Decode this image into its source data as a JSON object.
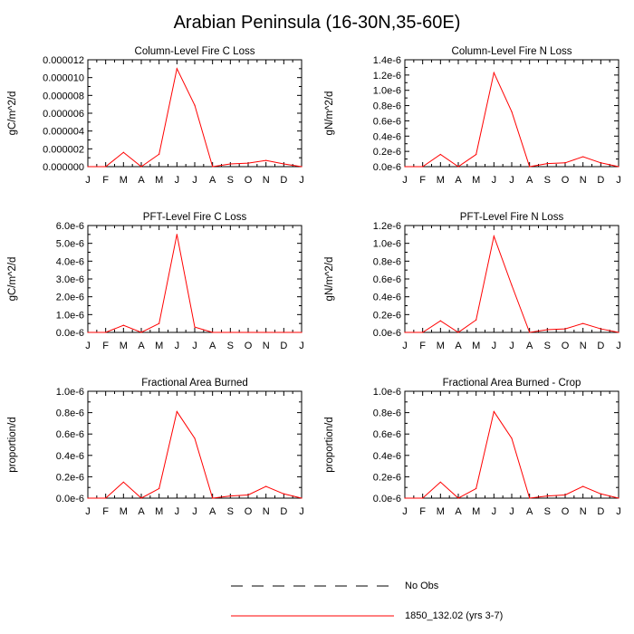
{
  "page_title": "Arabian Peninsula (16-30N,35-60E)",
  "colors": {
    "model_line": "#ff0000",
    "obs_line": "#000000"
  },
  "legend": [
    {
      "label": "No Obs",
      "style": "dashed",
      "color": "#000000"
    },
    {
      "label": "1850_132.02 (yrs 3-7)",
      "style": "solid",
      "color": "#ff0000"
    }
  ],
  "chart_data": [
    {
      "type": "line",
      "title": "Column-Level Fire C Loss",
      "ylabel": "gC/m^2/d",
      "categories": [
        "J",
        "F",
        "M",
        "A",
        "M",
        "J",
        "J",
        "A",
        "S",
        "O",
        "N",
        "D",
        "J"
      ],
      "ylim": [
        0,
        1.2e-05
      ],
      "yticks": [
        "0.000000",
        "0.000002",
        "0.000004",
        "0.000006",
        "0.000008",
        "0.000010",
        "0.000012"
      ],
      "series": [
        {
          "name": "1850_132.02 (yrs 3-7)",
          "values": [
            0,
            0,
            1.6e-06,
            0,
            1.4e-06,
            1.1e-05,
            6.9e-06,
            0,
            3e-07,
            4e-07,
            7e-07,
            3e-07,
            0
          ]
        }
      ]
    },
    {
      "type": "line",
      "title": "Column-Level Fire N Loss",
      "ylabel": "gN/m^2/d",
      "categories": [
        "J",
        "F",
        "M",
        "A",
        "M",
        "J",
        "J",
        "A",
        "S",
        "O",
        "N",
        "D",
        "J"
      ],
      "ylim": [
        0,
        1.4e-06
      ],
      "yticks": [
        "0.0e-6",
        "0.2e-6",
        "0.4e-6",
        "0.6e-6",
        "0.8e-6",
        "1.0e-6",
        "1.2e-6",
        "1.4e-6"
      ],
      "series": [
        {
          "name": "1850_132.02 (yrs 3-7)",
          "values": [
            0,
            0,
            1.6e-07,
            0,
            1.6e-07,
            1.23e-06,
            7.2e-07,
            0,
            4e-08,
            5e-08,
            1.3e-07,
            5e-08,
            0
          ]
        }
      ]
    },
    {
      "type": "line",
      "title": "PFT-Level Fire C Loss",
      "ylabel": "gC/m^2/d",
      "categories": [
        "J",
        "F",
        "M",
        "A",
        "M",
        "J",
        "J",
        "A",
        "S",
        "O",
        "N",
        "D",
        "J"
      ],
      "ylim": [
        0,
        6e-06
      ],
      "yticks": [
        "0.0e-6",
        "1.0e-6",
        "2.0e-6",
        "3.0e-6",
        "4.0e-6",
        "5.0e-6",
        "6.0e-6"
      ],
      "series": [
        {
          "name": "1850_132.02 (yrs 3-7)",
          "values": [
            0,
            0,
            4e-07,
            0,
            5e-07,
            5.5e-06,
            3e-07,
            0,
            0,
            0,
            0,
            0,
            0
          ]
        }
      ]
    },
    {
      "type": "line",
      "title": "PFT-Level Fire N Loss",
      "ylabel": "gN/m^2/d",
      "categories": [
        "J",
        "F",
        "M",
        "A",
        "M",
        "J",
        "J",
        "A",
        "S",
        "O",
        "N",
        "D",
        "J"
      ],
      "ylim": [
        0,
        1.2e-06
      ],
      "yticks": [
        "0.0e-6",
        "0.2e-6",
        "0.4e-6",
        "0.6e-6",
        "0.8e-6",
        "1.0e-6",
        "1.2e-6"
      ],
      "series": [
        {
          "name": "1850_132.02 (yrs 3-7)",
          "values": [
            0,
            0,
            1.3e-07,
            0,
            1.4e-07,
            1.08e-06,
            5.3e-07,
            0,
            3e-08,
            4e-08,
            1e-07,
            4e-08,
            0
          ]
        }
      ]
    },
    {
      "type": "line",
      "title": "Fractional Area Burned",
      "ylabel": "proportion/d",
      "categories": [
        "J",
        "F",
        "M",
        "A",
        "M",
        "J",
        "J",
        "A",
        "S",
        "O",
        "N",
        "D",
        "J"
      ],
      "ylim": [
        0,
        1e-06
      ],
      "yticks": [
        "0.0e-6",
        "0.2e-6",
        "0.4e-6",
        "0.6e-6",
        "0.8e-6",
        "1.0e-6"
      ],
      "series": [
        {
          "name": "1850_132.02 (yrs 3-7)",
          "values": [
            0,
            0,
            1.5e-07,
            0,
            9e-08,
            8.1e-07,
            5.6e-07,
            0,
            2e-08,
            3e-08,
            1.1e-07,
            4e-08,
            0
          ]
        }
      ]
    },
    {
      "type": "line",
      "title": "Fractional Area Burned - Crop",
      "ylabel": "proportion/d",
      "categories": [
        "J",
        "F",
        "M",
        "A",
        "M",
        "J",
        "J",
        "A",
        "S",
        "O",
        "N",
        "D",
        "J"
      ],
      "ylim": [
        0,
        1e-06
      ],
      "yticks": [
        "0.0e-6",
        "0.2e-6",
        "0.4e-6",
        "0.6e-6",
        "0.8e-6",
        "1.0e-6"
      ],
      "series": [
        {
          "name": "1850_132.02 (yrs 3-7)",
          "values": [
            0,
            0,
            1.5e-07,
            0,
            9e-08,
            8.1e-07,
            5.6e-07,
            0,
            2e-08,
            3e-08,
            1.1e-07,
            4e-08,
            0
          ]
        }
      ]
    }
  ]
}
